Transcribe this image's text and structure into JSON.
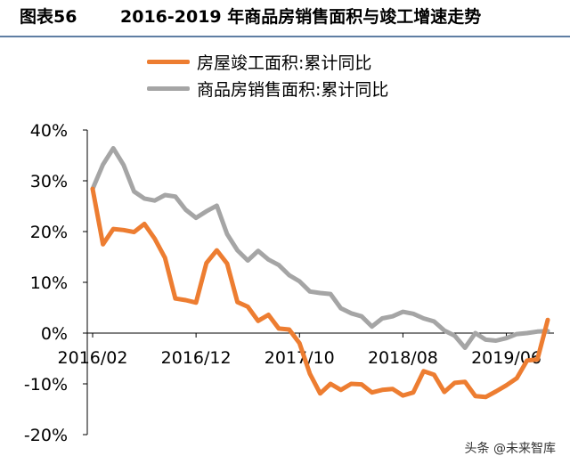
{
  "header": {
    "fig_label": "图表56",
    "fig_title": "2016-2019 年商品房销售面积与竣工增速走势"
  },
  "watermark": "头条 @未来智库",
  "colors": {
    "completion": "#ed7d31",
    "sales": "#a5a5a5",
    "header_rule": "#5f7ea3"
  },
  "chart_data": {
    "type": "line",
    "title": "",
    "xlabel": "",
    "ylabel": "",
    "y_ticks": [
      "40%",
      "30%",
      "20%",
      "10%",
      "0%",
      "-10%",
      "-20%"
    ],
    "ylim": [
      -20,
      40
    ],
    "x_ticks": [
      "2016/02",
      "2016/12",
      "2017/10",
      "2018/08",
      "2019/06"
    ],
    "legend_position": "top-center",
    "grid": false,
    "series": [
      {
        "name": "房屋竣工面积:累计同比",
        "color": "#ed7d31",
        "values": [
          28.4,
          17.5,
          20.5,
          20.3,
          19.9,
          21.5,
          18.6,
          14.8,
          6.8,
          6.5,
          6.0,
          13.8,
          16.3,
          13.7,
          6.1,
          5.2,
          2.4,
          3.6,
          0.9,
          0.7,
          -2.0,
          -8.0,
          -11.9,
          -10.0,
          -11.2,
          -10.0,
          -10.1,
          -11.7,
          -11.2,
          -11.0,
          -12.3,
          -11.7,
          -7.5,
          -8.2,
          -11.6,
          -9.8,
          -9.6,
          -12.4,
          -12.6,
          -11.5,
          -10.3,
          -8.9,
          -5.4,
          -5.2,
          2.6
        ]
      },
      {
        "name": "商品房销售面积:累计同比",
        "color": "#a5a5a5",
        "values": [
          28.4,
          33.2,
          36.4,
          33.1,
          27.9,
          26.5,
          26.1,
          27.2,
          26.9,
          24.3,
          22.7,
          24.0,
          25.1,
          19.5,
          16.3,
          14.3,
          16.2,
          14.5,
          13.4,
          11.4,
          10.2,
          8.2,
          7.9,
          7.7,
          4.9,
          3.9,
          3.3,
          1.3,
          2.9,
          3.3,
          4.2,
          3.8,
          2.9,
          2.3,
          0.5,
          -0.5,
          -2.9,
          0.0,
          -1.3,
          -1.5,
          -1.0,
          -0.2,
          0.0,
          0.3,
          0.4
        ]
      }
    ]
  }
}
